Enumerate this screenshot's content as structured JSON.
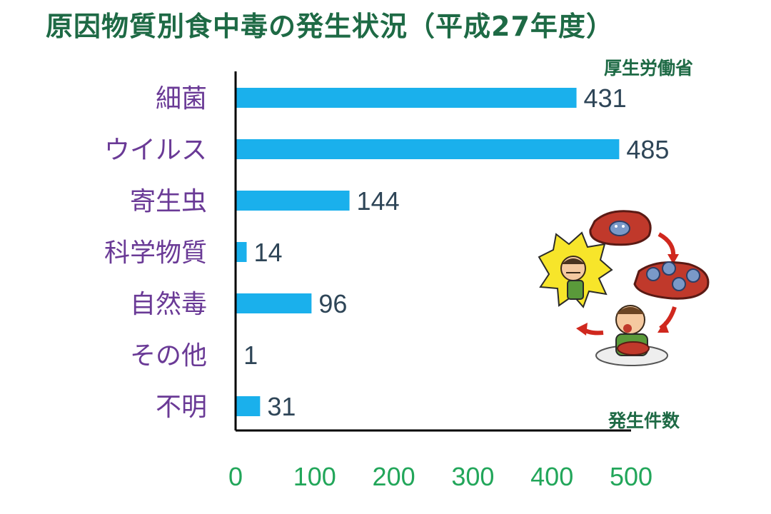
{
  "title": "原因物質別食中毒の発生状況（平成27年度）",
  "source": "厚生労働省",
  "colors": {
    "bar": "#1ab0ec",
    "title": "#1e6a45",
    "category_label": "#6a3a96",
    "value_label": "#2e4557",
    "x_tick": "#22a65a",
    "axis": "#000000"
  },
  "illustration": {
    "description_icon": "food-poisoning-cycle-illustration"
  },
  "chart_data": {
    "type": "bar",
    "orientation": "horizontal",
    "categories": [
      "細菌",
      "ウイルス",
      "寄生虫",
      "科学物質",
      "自然毒",
      "その他",
      "不明"
    ],
    "values": [
      431,
      485,
      144,
      14,
      96,
      1,
      31
    ],
    "xlabel": "発生件数",
    "xlim": [
      0,
      500
    ],
    "xticks": [
      0,
      100,
      200,
      300,
      400,
      500
    ],
    "grid": false,
    "legend": "none"
  }
}
